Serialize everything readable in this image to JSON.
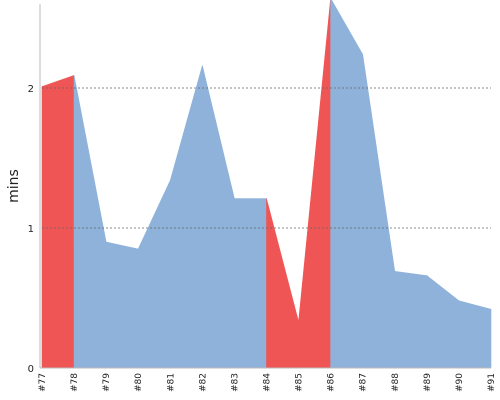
{
  "chart_data": {
    "type": "area",
    "ylabel": "mins",
    "xlabel": "",
    "title": "",
    "ylim": [
      0,
      2.6
    ],
    "yticks": [
      0,
      1,
      2
    ],
    "grid": "horizontal-dashed at 1 and 2",
    "categories": [
      "#77",
      "#78",
      "#79",
      "#80",
      "#81",
      "#82",
      "#83",
      "#84",
      "#85",
      "#86",
      "#87",
      "#88",
      "#89",
      "#90",
      "#91"
    ],
    "x_ticks_printed": [
      "#77",
      "#78",
      "#79",
      "#80",
      "#81",
      "#82",
      "#83",
      "#84",
      "#85",
      "#86",
      "#87",
      "#88",
      "#89",
      "#90",
      "#91"
    ],
    "series": [
      {
        "values": [
          2.01,
          2.09,
          0.9,
          0.85,
          1.34,
          2.16,
          1.21,
          1.21,
          0.33,
          2.64,
          2.24,
          0.69,
          0.66,
          0.48,
          0.42
        ]
      }
    ],
    "status": [
      "failed",
      "passed",
      "passed",
      "passed",
      "passed",
      "passed",
      "passed",
      "failed",
      "failed",
      "passed",
      "passed",
      "passed",
      "passed",
      "passed",
      "passed"
    ],
    "colors": {
      "passed": "#8fb2da",
      "failed": "#f05555",
      "grid": "#666666",
      "axis": "#bbbbbb"
    }
  }
}
